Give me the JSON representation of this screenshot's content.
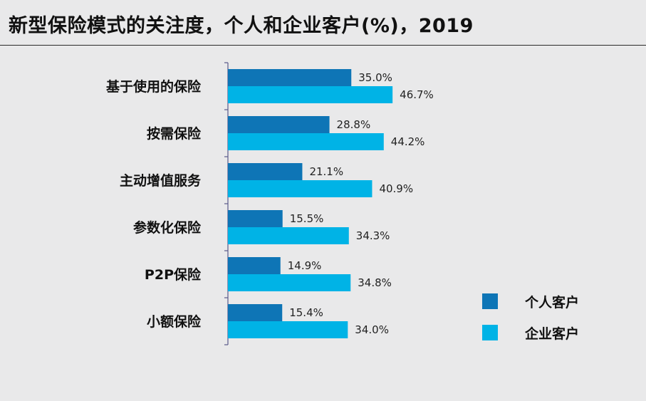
{
  "title": "新型保险模式的关注度，个人和企业客户(%)，2019",
  "chart_data": {
    "type": "bar",
    "orientation": "horizontal",
    "categories": [
      "基于使用的保险",
      "按需保险",
      "主动增值服务",
      "参数化保险",
      "P2P保险",
      "小额保险"
    ],
    "series": [
      {
        "name": "个人客户",
        "values": [
          35.0,
          28.8,
          21.1,
          15.5,
          14.9,
          15.4
        ],
        "labels": [
          "35.0%",
          "28.8%",
          "21.1%",
          "15.5%",
          "14.9%",
          "15.4%"
        ],
        "color": "#0e75b6"
      },
      {
        "name": "企业客户",
        "values": [
          46.7,
          44.2,
          40.9,
          34.3,
          34.8,
          34.0
        ],
        "labels": [
          "46.7%",
          "44.2%",
          "40.9%",
          "34.3%",
          "34.8%",
          "34.0%"
        ],
        "color": "#00b3e6"
      }
    ],
    "xlim": [
      0,
      100
    ],
    "grid": false,
    "legend": "right"
  }
}
